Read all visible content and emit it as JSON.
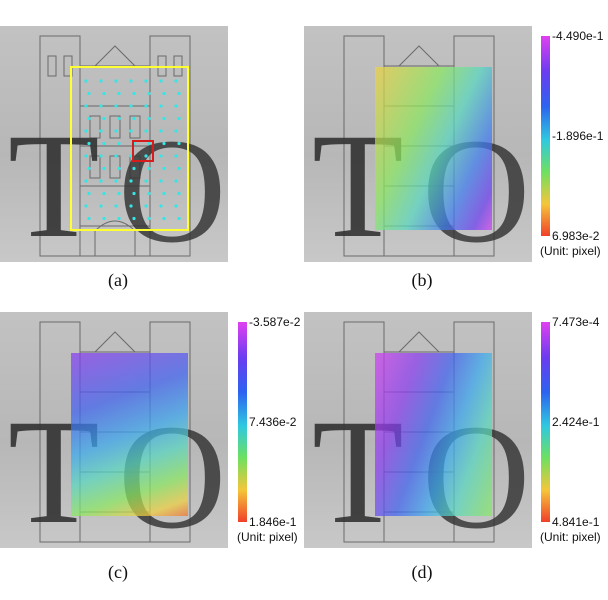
{
  "panels": [
    {
      "caption": "(a)",
      "has_overlay": false,
      "colorbar": null
    },
    {
      "caption": "(b)",
      "has_overlay": true,
      "colorbar": {
        "top": "-4.490e-1",
        "middle": "-1.896e-1",
        "bottom": "6.983e-2",
        "unit": "(Unit: pixel)"
      }
    },
    {
      "caption": "(c)",
      "has_overlay": true,
      "colorbar": {
        "top": "-3.587e-2",
        "middle": "7.436e-2",
        "bottom": "1.846e-1",
        "unit": "(Unit: pixel)"
      }
    },
    {
      "caption": "(d)",
      "has_overlay": true,
      "colorbar": {
        "top": "7.473e-4",
        "middle": "2.424e-1",
        "bottom": "4.841e-1",
        "unit": "(Unit: pixel)"
      }
    }
  ],
  "colors": {
    "roi_box": "#ffff33",
    "subset_box": "#d61d1d",
    "seed_points": "#35e6e6",
    "colormap": [
      "#e040f0",
      "#6a3cf0",
      "#2d62f0",
      "#2fc9e0",
      "#6ee060",
      "#f4c63a",
      "#f0402a"
    ]
  },
  "icons": {
    "background": "building-facade-with-TO-letters"
  }
}
